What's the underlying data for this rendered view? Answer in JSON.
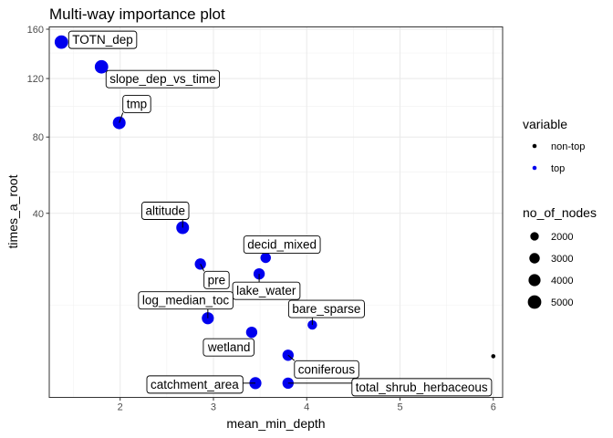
{
  "chart_data": {
    "type": "scatter",
    "title": "Multi-way importance plot",
    "xlabel": "mean_min_depth",
    "ylabel": "times_a_root",
    "xlim": [
      1.24,
      6.1
    ],
    "y_scale": "sqrt",
    "ylim": [
      0,
      162
    ],
    "x_ticks": [
      2,
      3,
      4,
      5,
      6
    ],
    "y_ticks": [
      40,
      80,
      120,
      160
    ],
    "grid": true,
    "colors": {
      "top": "#0000ee",
      "non-top": "#000000"
    },
    "points": [
      {
        "label": "TOTN_dep",
        "x": 1.37,
        "y": 149,
        "variable": "top",
        "no_of_nodes": 5000
      },
      {
        "label": "slope_dep_vs_time",
        "x": 1.8,
        "y": 129,
        "variable": "top",
        "no_of_nodes": 5000
      },
      {
        "label": "tmp",
        "x": 1.99,
        "y": 89,
        "variable": "top",
        "no_of_nodes": 4500
      },
      {
        "label": "altitude",
        "x": 2.67,
        "y": 34,
        "variable": "top",
        "no_of_nodes": 4500
      },
      {
        "label": "decid_mixed",
        "x": 3.56,
        "y": 23,
        "variable": "top",
        "no_of_nodes": 3000
      },
      {
        "label": "pre",
        "x": 2.86,
        "y": 21,
        "variable": "top",
        "no_of_nodes": 3500
      },
      {
        "label": "lake_water",
        "x": 3.49,
        "y": 18,
        "variable": "top",
        "no_of_nodes": 3500
      },
      {
        "label": "log_median_toc",
        "x": 2.94,
        "y": 7.4,
        "variable": "top",
        "no_of_nodes": 4000
      },
      {
        "label": "bare_sparse",
        "x": 4.06,
        "y": 6.2,
        "variable": "top",
        "no_of_nodes": 2500
      },
      {
        "label": "wetland",
        "x": 3.41,
        "y": 5,
        "variable": "top",
        "no_of_nodes": 3500
      },
      {
        "label": "coniferous",
        "x": 3.8,
        "y": 2.1,
        "variable": "top",
        "no_of_nodes": 3500
      },
      {
        "label": "catchment_area",
        "x": 3.45,
        "y": 0.24,
        "variable": "top",
        "no_of_nodes": 4000
      },
      {
        "label": "total_shrub_herbaceous",
        "x": 3.8,
        "y": 0.24,
        "variable": "top",
        "no_of_nodes": 3500
      },
      {
        "label": "",
        "x": 6.0,
        "y": 2.0,
        "variable": "non-top",
        "no_of_nodes": 1000
      }
    ],
    "legend": {
      "placement": "right",
      "color_title": "variable",
      "color_items": [
        {
          "label": "non-top",
          "key": "non-top"
        },
        {
          "label": "top",
          "key": "top"
        }
      ],
      "size_title": "no_of_nodes",
      "size_items": [
        {
          "label": "2000",
          "value": 2000
        },
        {
          "label": "3000",
          "value": 3000
        },
        {
          "label": "4000",
          "value": 4000
        },
        {
          "label": "5000",
          "value": 5000
        }
      ]
    }
  }
}
